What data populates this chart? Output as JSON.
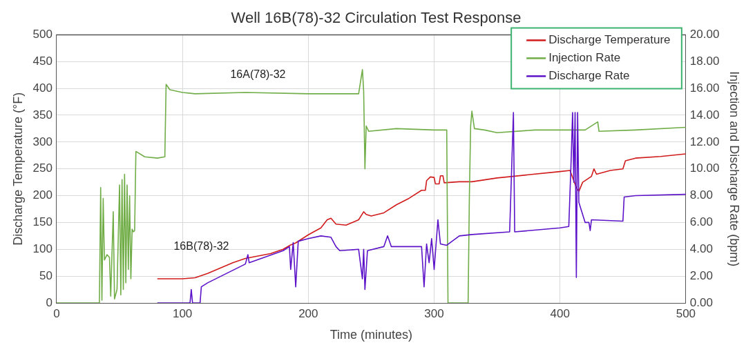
{
  "chart_data": {
    "type": "line",
    "title": "Well 16B(78)-32 Circulation Test Response",
    "xlabel": "Time (minutes)",
    "ylabel": "Discharge Temperature (°F)",
    "y2label": "Injection and Discharge Rate (bpm)",
    "xlim": [
      0,
      500
    ],
    "xticks": [
      0,
      100,
      200,
      300,
      400,
      500
    ],
    "ylim": [
      0,
      500
    ],
    "yticks": [
      0,
      50,
      100,
      150,
      200,
      250,
      300,
      350,
      400,
      450,
      500
    ],
    "y2lim": [
      0,
      20
    ],
    "y2ticks": [
      {
        "value": 0,
        "label": "0.00"
      },
      {
        "value": 2,
        "label": "2.00"
      },
      {
        "value": 4,
        "label": "4.00"
      },
      {
        "value": 6,
        "label": "6.00"
      },
      {
        "value": 8,
        "label": "8.00"
      },
      {
        "value": 10,
        "label": "10.00"
      },
      {
        "value": 12,
        "label": "12.00"
      },
      {
        "value": 14,
        "label": "14.00"
      },
      {
        "value": 16,
        "label": "16.00"
      },
      {
        "value": 18,
        "label": "18.00"
      },
      {
        "value": 20,
        "label": "20.00"
      }
    ],
    "grid": true,
    "legend": "top right",
    "marker": "none",
    "line_style": "solid",
    "annotations": [
      "16A(78)-32",
      "16B(78)-32"
    ],
    "series": [
      {
        "name": "Discharge Temperature",
        "color": "#d11a1a",
        "x": [
          80,
          100,
          110,
          120,
          130,
          140,
          150,
          170,
          180,
          185,
          190,
          200,
          210,
          215,
          218,
          222,
          230,
          240,
          244,
          246,
          250,
          260,
          270,
          280,
          290,
          293,
          294,
          297,
          300,
          301,
          304,
          305,
          307,
          308,
          320,
          330,
          350,
          400,
          408,
          413,
          415,
          418,
          425,
          427,
          429,
          440,
          450,
          452,
          460,
          480,
          500
        ],
        "values": [
          45,
          45,
          47,
          55,
          65,
          75,
          83,
          92,
          100,
          107,
          112,
          127,
          140,
          155,
          158,
          147,
          145,
          155,
          170,
          165,
          162,
          168,
          183,
          195,
          210,
          210,
          228,
          235,
          234,
          222,
          222,
          237,
          237,
          224,
          226,
          226,
          233,
          245,
          247,
          215,
          208,
          225,
          236,
          250,
          240,
          247,
          250,
          265,
          270,
          273,
          278
        ]
      },
      {
        "name": "Injection Rate",
        "color": "#70ad47",
        "axis": "y2",
        "x": [
          0,
          34,
          35,
          36,
          37,
          38,
          40,
          42,
          43,
          45,
          46,
          48,
          50,
          51,
          52,
          53,
          54,
          55,
          56,
          57,
          58,
          59,
          60,
          61,
          62,
          63,
          70,
          80,
          86,
          87,
          90,
          100,
          110,
          150,
          200,
          240,
          243,
          244,
          245,
          246,
          248,
          270,
          300,
          310,
          311,
          327,
          328,
          329,
          330,
          332,
          340,
          350,
          380,
          420,
          430,
          431,
          460,
          500
        ],
        "values": [
          0,
          0,
          8.6,
          0.2,
          7.8,
          3.2,
          3.6,
          3.4,
          0.5,
          6.8,
          0.3,
          1,
          8.8,
          0.6,
          9.2,
          1,
          9.6,
          1.5,
          8.8,
          2.5,
          8,
          1.8,
          5.5,
          5.3,
          5.4,
          11.3,
          10.9,
          10.8,
          10.9,
          16.3,
          15.9,
          15.7,
          15.6,
          15.7,
          15.6,
          15.6,
          17.4,
          15.8,
          10,
          13.2,
          12.8,
          13,
          12.9,
          12.9,
          0,
          0,
          8,
          13.2,
          14.3,
          13,
          12.9,
          12.7,
          12.9,
          12.9,
          13.5,
          12.8,
          12.9,
          13.1
        ]
      },
      {
        "name": "Discharge Rate",
        "color": "#5b12c8",
        "axis": "y2",
        "x": [
          80,
          106,
          107,
          108,
          114,
          115,
          120,
          150,
          152,
          153,
          180,
          185,
          186,
          188,
          190,
          192,
          200,
          210,
          218,
          222,
          225,
          240,
          243,
          244,
          245,
          247,
          260,
          263,
          266,
          290,
          292,
          294,
          296,
          298,
          300,
          303,
          305,
          310,
          320,
          330,
          360,
          363,
          364,
          400,
          407,
          409,
          410,
          411,
          412,
          413,
          414,
          415,
          420,
          423,
          424,
          425,
          450,
          451,
          460,
          500
        ],
        "values": [
          0,
          0,
          1,
          0,
          0,
          1.2,
          1.5,
          2.9,
          3.6,
          3,
          3.9,
          4.2,
          2.5,
          4.5,
          1.2,
          4.6,
          4.8,
          5,
          4.9,
          4.2,
          3.9,
          4,
          1.8,
          4,
          1,
          3.9,
          4.2,
          5,
          4.2,
          4.2,
          1.2,
          4.4,
          3,
          4.8,
          2.5,
          6.2,
          4.4,
          4.3,
          5,
          5.1,
          5.3,
          14.2,
          5.3,
          5.6,
          5.7,
          11,
          14.2,
          9,
          14.2,
          1.9,
          14.2,
          7.5,
          6,
          6,
          5.4,
          6.2,
          6.1,
          7.9,
          8,
          8.1
        ]
      }
    ]
  }
}
